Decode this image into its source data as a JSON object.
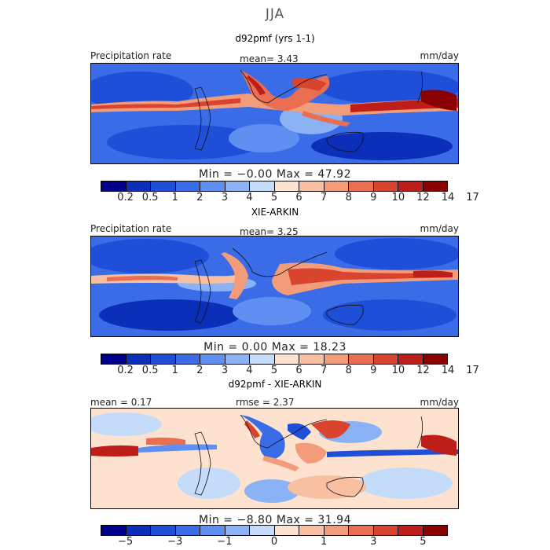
{
  "season": "JJA",
  "panels": [
    {
      "title": "d92pmf (yrs 1-1)",
      "left_label": "Precipitation rate",
      "center_label": "mean=   3.43",
      "unit": "mm/day",
      "minmax": "Min =  −0.00  Max =  47.92",
      "colorbar": {
        "colors": [
          "#00008b",
          "#0b2fb8",
          "#1f4fd9",
          "#3a6ce8",
          "#5f8ff0",
          "#8bb2f5",
          "#c4dbfa",
          "#fde3cf",
          "#f8c0a0",
          "#f29c7a",
          "#e96e52",
          "#d9442f",
          "#bd1e19",
          "#8b0000"
        ],
        "ticks": [
          "0.2",
          "0.5",
          "1",
          "2",
          "3",
          "4",
          "5",
          "6",
          "7",
          "8",
          "9",
          "10",
          "12",
          "14",
          "17"
        ]
      }
    },
    {
      "title": "XIE-ARKIN",
      "left_label": "Precipitation rate",
      "center_label": "mean=   3.25",
      "unit": "mm/day",
      "minmax": "Min =   0.00  Max =  18.23",
      "colorbar": {
        "colors": [
          "#00008b",
          "#0b2fb8",
          "#1f4fd9",
          "#3a6ce8",
          "#5f8ff0",
          "#8bb2f5",
          "#c4dbfa",
          "#fde3cf",
          "#f8c0a0",
          "#f29c7a",
          "#e96e52",
          "#d9442f",
          "#bd1e19",
          "#8b0000"
        ],
        "ticks": [
          "0.2",
          "0.5",
          "1",
          "2",
          "3",
          "4",
          "5",
          "6",
          "7",
          "8",
          "9",
          "10",
          "12",
          "14",
          "17"
        ]
      }
    },
    {
      "title": "d92pmf - XIE-ARKIN",
      "left_label": "mean =   0.17",
      "center_label": "rmse =   2.37",
      "unit": "mm/day",
      "minmax": "Min =  −8.80  Max =  31.94",
      "colorbar": {
        "colors": [
          "#00008b",
          "#0b2fb8",
          "#1f4fd9",
          "#3a6ce8",
          "#5f8ff0",
          "#8bb2f5",
          "#c4dbfa",
          "#fde3cf",
          "#f8c0a0",
          "#f29c7a",
          "#e96e52",
          "#d9442f",
          "#bd1e19",
          "#8b0000"
        ],
        "ticks": [
          "−5",
          "−3",
          "−1",
          "0",
          "1",
          "3",
          "5"
        ]
      }
    }
  ]
}
